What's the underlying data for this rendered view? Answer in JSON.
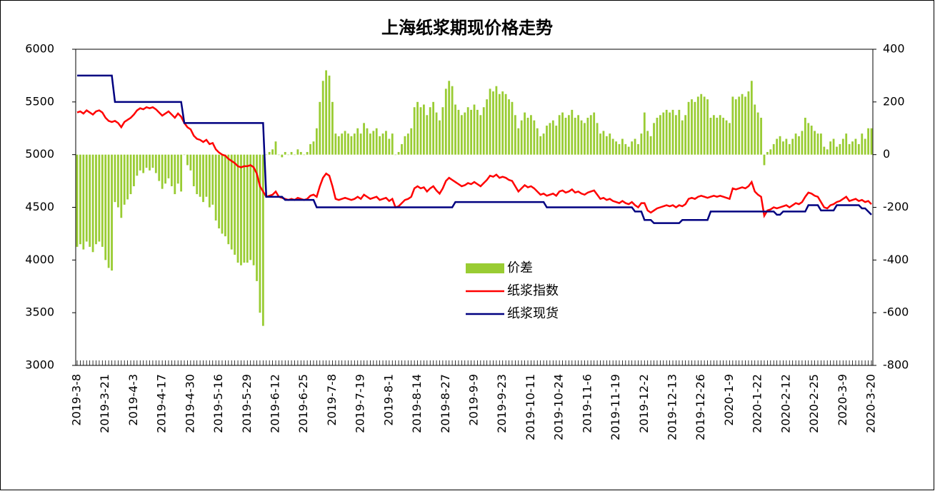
{
  "chart_data": {
    "type": "combo",
    "title": "上海纸浆期现价格走势",
    "categories": [
      "2019-3-8",
      null,
      null,
      null,
      null,
      null,
      null,
      null,
      null,
      "2019-3-21",
      null,
      null,
      null,
      null,
      null,
      null,
      null,
      null,
      "2019-4-3",
      null,
      null,
      null,
      null,
      null,
      null,
      null,
      null,
      "2019-4-17",
      null,
      null,
      null,
      null,
      null,
      null,
      null,
      null,
      "2019-4-30",
      null,
      null,
      null,
      null,
      null,
      null,
      null,
      null,
      "2019-5-16",
      null,
      null,
      null,
      null,
      null,
      null,
      null,
      null,
      "2019-5-29",
      null,
      null,
      null,
      null,
      null,
      null,
      null,
      null,
      "2019-6-12",
      null,
      null,
      null,
      null,
      null,
      null,
      null,
      null,
      "2019-6-25",
      null,
      null,
      null,
      null,
      null,
      null,
      null,
      null,
      "2019-7-8",
      null,
      null,
      null,
      null,
      null,
      null,
      null,
      null,
      "2019-7-19",
      null,
      null,
      null,
      null,
      null,
      null,
      null,
      null,
      "2019-8-1",
      null,
      null,
      null,
      null,
      null,
      null,
      null,
      null,
      "2019-8-14",
      null,
      null,
      null,
      null,
      null,
      null,
      null,
      null,
      "2019-8-27",
      null,
      null,
      null,
      null,
      null,
      null,
      null,
      null,
      "2019-9-9",
      null,
      null,
      null,
      null,
      null,
      null,
      null,
      null,
      "2019-9-23",
      null,
      null,
      null,
      null,
      null,
      null,
      null,
      null,
      "2019-10-11",
      null,
      null,
      null,
      null,
      null,
      null,
      null,
      null,
      "2019-10-24",
      null,
      null,
      null,
      null,
      null,
      null,
      null,
      null,
      "2019-11-6",
      null,
      null,
      null,
      null,
      null,
      null,
      null,
      null,
      "2019-11-19",
      null,
      null,
      null,
      null,
      null,
      null,
      null,
      null,
      "2019-12-2",
      null,
      null,
      null,
      null,
      null,
      null,
      null,
      null,
      "2019-12-13",
      null,
      null,
      null,
      null,
      null,
      null,
      null,
      null,
      "2019-12-26",
      null,
      null,
      null,
      null,
      null,
      null,
      null,
      null,
      "2020-1-9",
      null,
      null,
      null,
      null,
      null,
      null,
      null,
      null,
      "2020-1-22",
      null,
      null,
      null,
      null,
      null,
      null,
      null,
      null,
      "2020-2-12",
      null,
      null,
      null,
      null,
      null,
      null,
      null,
      null,
      "2020-2-25",
      null,
      null,
      null,
      null,
      null,
      null,
      null,
      null,
      "2020-3-9",
      null,
      null,
      null,
      null,
      null,
      null,
      null,
      null,
      "2020-3-20"
    ],
    "series": [
      {
        "name": "价差",
        "type": "bar",
        "axis": "y2",
        "color": "#99cc33",
        "values": [
          -350,
          -340,
          -360,
          -330,
          -350,
          -370,
          -340,
          -330,
          -350,
          -400,
          -430,
          -440,
          -180,
          -200,
          -240,
          -190,
          -170,
          -150,
          -120,
          -80,
          -60,
          -70,
          -50,
          -60,
          -50,
          -70,
          -100,
          -130,
          -110,
          -90,
          -120,
          -150,
          -110,
          -140,
          0,
          -40,
          -60,
          -120,
          -150,
          -160,
          -180,
          -160,
          -200,
          -190,
          -250,
          -280,
          -300,
          -310,
          -340,
          -360,
          -380,
          -410,
          -420,
          -410,
          -410,
          -400,
          -420,
          -480,
          -600,
          -650,
          0,
          10,
          20,
          50,
          0,
          -10,
          10,
          0,
          10,
          0,
          20,
          10,
          0,
          10,
          40,
          50,
          100,
          200,
          280,
          320,
          300,
          200,
          80,
          70,
          80,
          90,
          80,
          70,
          80,
          100,
          80,
          120,
          100,
          80,
          90,
          100,
          70,
          80,
          90,
          60,
          80,
          0,
          10,
          40,
          70,
          80,
          100,
          180,
          200,
          180,
          190,
          150,
          180,
          200,
          160,
          130,
          180,
          250,
          280,
          260,
          190,
          170,
          150,
          160,
          180,
          170,
          190,
          170,
          150,
          180,
          210,
          250,
          240,
          260,
          230,
          240,
          230,
          210,
          200,
          150,
          100,
          130,
          160,
          140,
          150,
          130,
          100,
          70,
          80,
          110,
          120,
          130,
          110,
          150,
          160,
          140,
          150,
          170,
          140,
          150,
          130,
          120,
          140,
          150,
          160,
          120,
          80,
          90,
          70,
          80,
          60,
          50,
          40,
          60,
          40,
          30,
          50,
          60,
          40,
          80,
          160,
          90,
          70,
          120,
          140,
          150,
          160,
          170,
          160,
          170,
          150,
          170,
          130,
          150,
          200,
          210,
          200,
          220,
          230,
          220,
          210,
          140,
          150,
          140,
          150,
          140,
          130,
          120,
          220,
          210,
          220,
          230,
          220,
          240,
          280,
          190,
          160,
          140,
          -40,
          10,
          20,
          40,
          60,
          70,
          50,
          60,
          40,
          60,
          80,
          70,
          90,
          140,
          120,
          110,
          90,
          80,
          80,
          30,
          20,
          50,
          60,
          30,
          40,
          60,
          80,
          40,
          50,
          60,
          40,
          80,
          60,
          100,
          100
        ]
      },
      {
        "name": "纸浆指数",
        "type": "line",
        "color": "#ff0000",
        "values": [
          5400,
          5410,
          5390,
          5420,
          5400,
          5380,
          5410,
          5420,
          5400,
          5350,
          5320,
          5310,
          5320,
          5300,
          5260,
          5310,
          5330,
          5350,
          5380,
          5420,
          5440,
          5430,
          5450,
          5440,
          5450,
          5430,
          5400,
          5370,
          5390,
          5410,
          5380,
          5350,
          5390,
          5360,
          5300,
          5260,
          5240,
          5180,
          5150,
          5140,
          5120,
          5140,
          5100,
          5110,
          5050,
          5020,
          5000,
          4990,
          4960,
          4940,
          4920,
          4890,
          4880,
          4890,
          4890,
          4900,
          4880,
          4820,
          4700,
          4650,
          4600,
          4610,
          4620,
          4650,
          4600,
          4590,
          4580,
          4570,
          4580,
          4570,
          4590,
          4580,
          4570,
          4580,
          4610,
          4620,
          4600,
          4700,
          4780,
          4820,
          4800,
          4700,
          4580,
          4570,
          4580,
          4590,
          4580,
          4570,
          4580,
          4600,
          4580,
          4620,
          4600,
          4580,
          4590,
          4600,
          4570,
          4580,
          4590,
          4560,
          4580,
          4500,
          4510,
          4540,
          4570,
          4580,
          4600,
          4680,
          4700,
          4680,
          4690,
          4650,
          4680,
          4700,
          4660,
          4630,
          4680,
          4750,
          4780,
          4760,
          4740,
          4720,
          4700,
          4710,
          4730,
          4720,
          4740,
          4720,
          4700,
          4730,
          4760,
          4800,
          4790,
          4810,
          4780,
          4790,
          4780,
          4760,
          4750,
          4700,
          4650,
          4680,
          4710,
          4690,
          4700,
          4680,
          4650,
          4620,
          4630,
          4610,
          4620,
          4630,
          4610,
          4650,
          4660,
          4640,
          4650,
          4670,
          4640,
          4650,
          4630,
          4620,
          4640,
          4650,
          4660,
          4620,
          4580,
          4590,
          4570,
          4580,
          4560,
          4550,
          4540,
          4560,
          4540,
          4530,
          4550,
          4520,
          4500,
          4540,
          4540,
          4470,
          4450,
          4470,
          4490,
          4500,
          4510,
          4520,
          4510,
          4520,
          4500,
          4520,
          4510,
          4530,
          4580,
          4590,
          4580,
          4600,
          4610,
          4600,
          4590,
          4600,
          4610,
          4600,
          4610,
          4600,
          4590,
          4580,
          4680,
          4670,
          4680,
          4690,
          4680,
          4700,
          4740,
          4650,
          4620,
          4600,
          4420,
          4470,
          4480,
          4500,
          4490,
          4500,
          4510,
          4520,
          4500,
          4520,
          4540,
          4530,
          4550,
          4600,
          4640,
          4630,
          4610,
          4600,
          4550,
          4500,
          4490,
          4520,
          4530,
          4550,
          4560,
          4580,
          4600,
          4560,
          4570,
          4580,
          4560,
          4570,
          4550,
          4560,
          4530
        ]
      },
      {
        "name": "纸浆现货",
        "type": "line",
        "color": "#000080",
        "values": [
          5750,
          5750,
          5750,
          5750,
          5750,
          5750,
          5750,
          5750,
          5750,
          5750,
          5750,
          5750,
          5500,
          5500,
          5500,
          5500,
          5500,
          5500,
          5500,
          5500,
          5500,
          5500,
          5500,
          5500,
          5500,
          5500,
          5500,
          5500,
          5500,
          5500,
          5500,
          5500,
          5500,
          5500,
          5300,
          5300,
          5300,
          5300,
          5300,
          5300,
          5300,
          5300,
          5300,
          5300,
          5300,
          5300,
          5300,
          5300,
          5300,
          5300,
          5300,
          5300,
          5300,
          5300,
          5300,
          5300,
          5300,
          5300,
          5300,
          5300,
          4600,
          4600,
          4600,
          4600,
          4600,
          4600,
          4570,
          4570,
          4570,
          4570,
          4570,
          4570,
          4570,
          4570,
          4570,
          4570,
          4500,
          4500,
          4500,
          4500,
          4500,
          4500,
          4500,
          4500,
          4500,
          4500,
          4500,
          4500,
          4500,
          4500,
          4500,
          4500,
          4500,
          4500,
          4500,
          4500,
          4500,
          4500,
          4500,
          4500,
          4500,
          4500,
          4500,
          4500,
          4500,
          4500,
          4500,
          4500,
          4500,
          4500,
          4500,
          4500,
          4500,
          4500,
          4500,
          4500,
          4500,
          4500,
          4500,
          4500,
          4550,
          4550,
          4550,
          4550,
          4550,
          4550,
          4550,
          4550,
          4550,
          4550,
          4550,
          4550,
          4550,
          4550,
          4550,
          4550,
          4550,
          4550,
          4550,
          4550,
          4550,
          4550,
          4550,
          4550,
          4550,
          4550,
          4550,
          4550,
          4550,
          4500,
          4500,
          4500,
          4500,
          4500,
          4500,
          4500,
          4500,
          4500,
          4500,
          4500,
          4500,
          4500,
          4500,
          4500,
          4500,
          4500,
          4500,
          4500,
          4500,
          4500,
          4500,
          4500,
          4500,
          4500,
          4500,
          4500,
          4500,
          4460,
          4460,
          4460,
          4380,
          4380,
          4380,
          4350,
          4350,
          4350,
          4350,
          4350,
          4350,
          4350,
          4350,
          4350,
          4380,
          4380,
          4380,
          4380,
          4380,
          4380,
          4380,
          4380,
          4380,
          4460,
          4460,
          4460,
          4460,
          4460,
          4460,
          4460,
          4460,
          4460,
          4460,
          4460,
          4460,
          4460,
          4460,
          4460,
          4460,
          4460,
          4460,
          4460,
          4460,
          4460,
          4430,
          4430,
          4460,
          4460,
          4460,
          4460,
          4460,
          4460,
          4460,
          4460,
          4520,
          4520,
          4520,
          4520,
          4470,
          4470,
          4470,
          4470,
          4470,
          4520,
          4520,
          4520,
          4520,
          4520,
          4520,
          4520,
          4520,
          4490,
          4490,
          4460,
          4430
        ]
      }
    ],
    "ylim": [
      3000,
      6000
    ],
    "yticks": [
      3000,
      3500,
      4000,
      4500,
      5000,
      5500,
      6000
    ],
    "y2lim": [
      -800,
      400
    ],
    "y2ticks": [
      -800,
      -600,
      -400,
      -200,
      0,
      200,
      400
    ],
    "legend_position": "center",
    "grid": false
  }
}
